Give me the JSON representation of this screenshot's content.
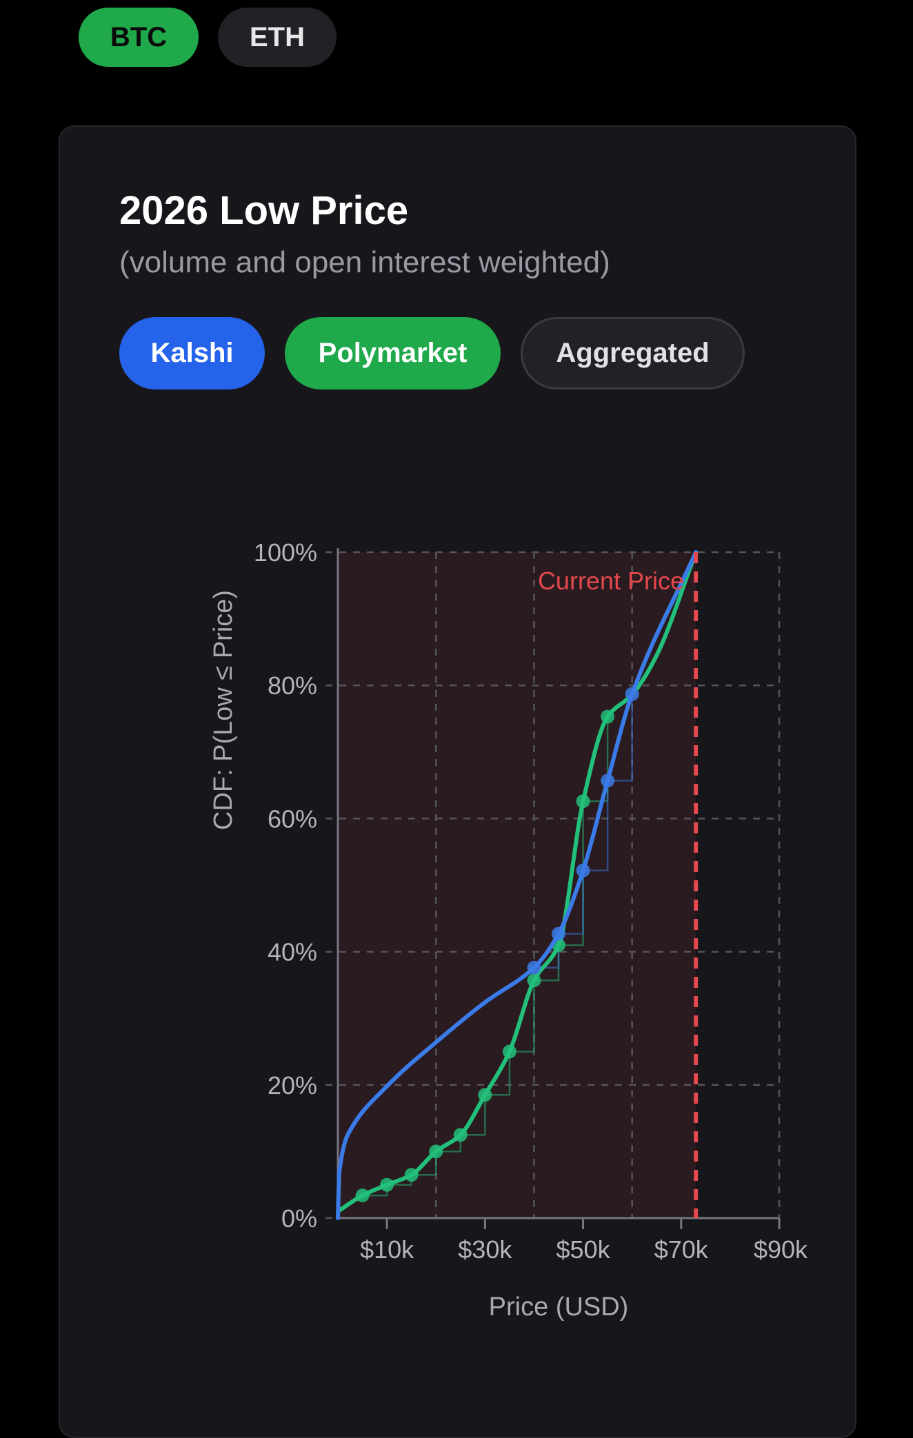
{
  "asset_selector": {
    "btc": "BTC",
    "eth": "ETH",
    "selected": "BTC"
  },
  "card": {
    "title": "2026 Low Price",
    "subtitle": "(volume and open interest weighted)",
    "sources": {
      "kalshi": "Kalshi",
      "polymarket": "Polymarket",
      "aggregated": "Aggregated"
    }
  },
  "colors": {
    "kalshi": "#3b7be8",
    "polymarket": "#22c07a",
    "current_price": "#e5484d",
    "btc_active": "#1fa94b"
  },
  "chart_data": {
    "type": "line",
    "xlabel": "Price (USD)",
    "ylabel": "CDF: P(Low ≤ Price)",
    "xlim": [
      0,
      90
    ],
    "ylim": [
      0,
      100
    ],
    "x_unit": "$k",
    "x_ticks": [
      10,
      30,
      50,
      70,
      90
    ],
    "x_tick_labels": [
      "$10k",
      "$30k",
      "$50k",
      "$70k",
      "$90k"
    ],
    "x_grid": [
      20,
      40,
      60,
      90
    ],
    "y_ticks": [
      0,
      20,
      40,
      60,
      80,
      100
    ],
    "y_tick_labels": [
      "0%",
      "20%",
      "40%",
      "60%",
      "80%",
      "100%"
    ],
    "grid": true,
    "current_price": {
      "label": "Current Price",
      "x": 73
    },
    "series": [
      {
        "name": "Kalshi",
        "color": "#3b7be8",
        "markers": [
          [
            40,
            37.6
          ],
          [
            45,
            42.7
          ],
          [
            50,
            52.2
          ],
          [
            55,
            65.7
          ],
          [
            60,
            78.7
          ]
        ],
        "curve": [
          [
            0,
            0
          ],
          [
            0.3,
            7
          ],
          [
            2,
            12.5
          ],
          [
            10,
            19.8
          ],
          [
            20,
            26.4
          ],
          [
            30,
            32.4
          ],
          [
            40,
            37.6
          ],
          [
            45,
            42.7
          ],
          [
            50,
            52.2
          ],
          [
            55,
            65.7
          ],
          [
            60,
            78.7
          ],
          [
            73,
            100
          ]
        ]
      },
      {
        "name": "Polymarket",
        "color": "#22c07a",
        "markers": [
          [
            5,
            3.4
          ],
          [
            10,
            5
          ],
          [
            15,
            6.5
          ],
          [
            20,
            10
          ],
          [
            25,
            12.5
          ],
          [
            30,
            18.5
          ],
          [
            35,
            25
          ],
          [
            40,
            35.7
          ],
          [
            45,
            41
          ],
          [
            50,
            62.6
          ],
          [
            55,
            75.3
          ]
        ],
        "curve": [
          [
            0,
            1
          ],
          [
            5,
            3.4
          ],
          [
            10,
            5
          ],
          [
            15,
            6.5
          ],
          [
            20,
            10
          ],
          [
            25,
            12.5
          ],
          [
            30,
            18.5
          ],
          [
            35,
            25
          ],
          [
            40,
            35.7
          ],
          [
            45,
            41
          ],
          [
            50,
            62.6
          ],
          [
            55,
            75.3
          ],
          [
            60,
            78.6
          ],
          [
            65,
            84.5
          ],
          [
            73,
            100
          ]
        ]
      }
    ]
  }
}
